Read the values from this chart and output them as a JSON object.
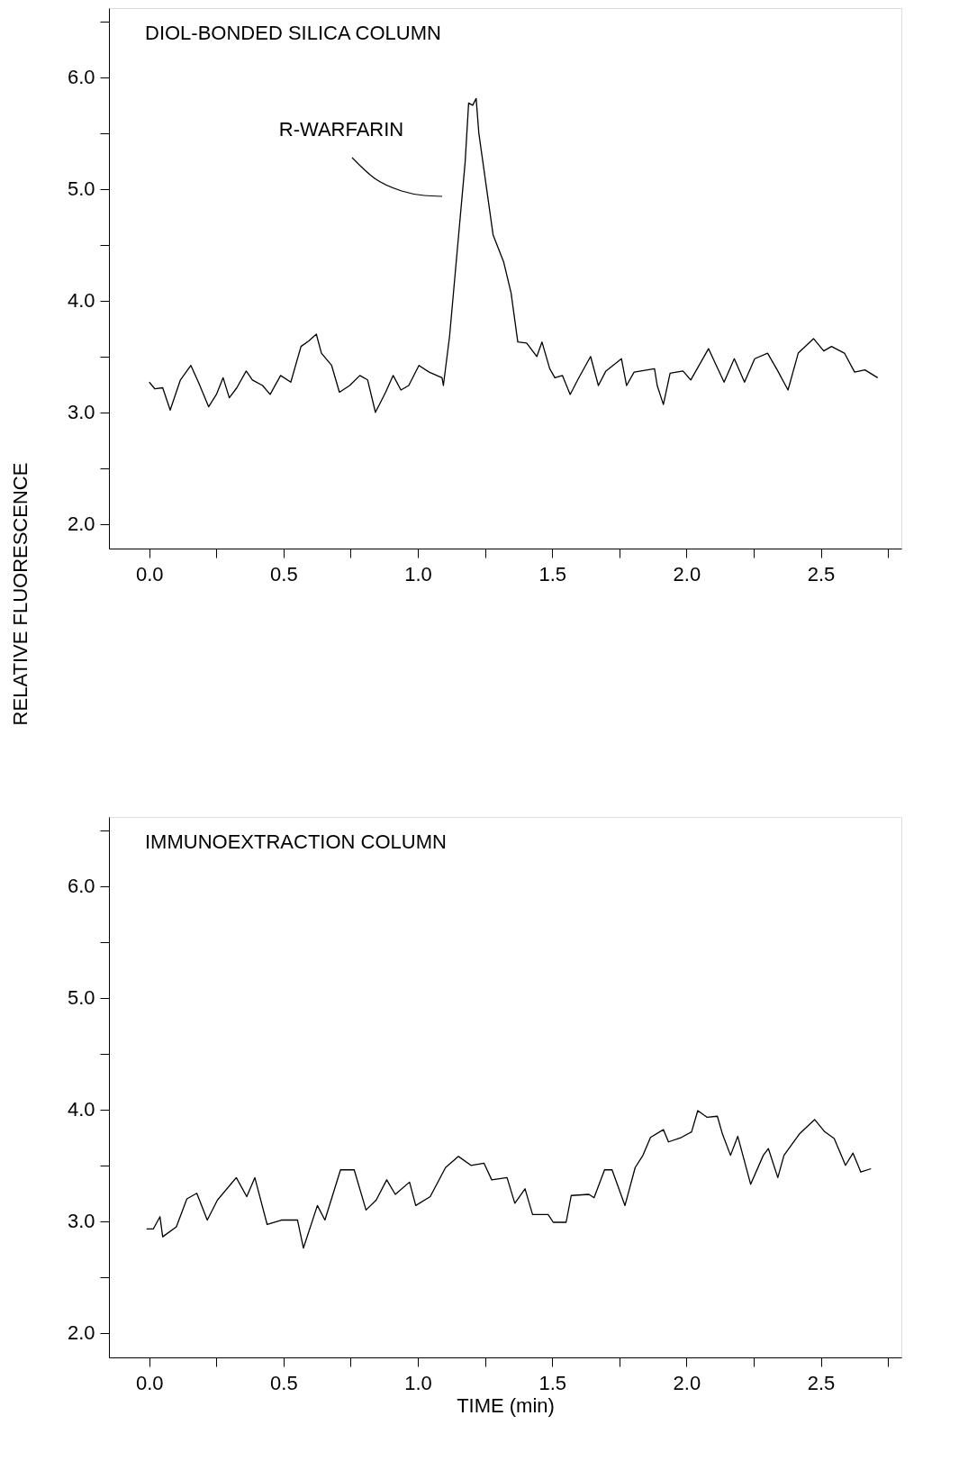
{
  "chart_data": [
    {
      "type": "line",
      "title": "DIOL-BONDED SILICA COLUMN",
      "ylabel": "RELATIVE FLUORESCENCE",
      "annotations": [
        "R-WARFARIN"
      ],
      "xlim": [
        -0.15,
        2.8
      ],
      "ylim": [
        1.78,
        6.62
      ],
      "xticks": [
        {
          "value": 0,
          "label": "0.0"
        },
        {
          "value": 0.25,
          "label": null
        },
        0.5,
        {
          "value": 0.75,
          "label": null
        },
        {
          "value": 1,
          "label": "1.0"
        },
        {
          "value": 1.25,
          "label": null
        },
        1.5,
        {
          "value": 1.75,
          "label": null
        },
        {
          "value": 2,
          "label": "2.0"
        },
        {
          "value": 2.25,
          "label": null
        },
        2.5,
        {
          "value": 2.75,
          "label": null
        }
      ],
      "yticks": [
        {
          "value": 2.0,
          "label": "2.0"
        },
        {
          "value": 2.5,
          "label": null
        },
        {
          "value": 3.0,
          "label": "3.0"
        },
        {
          "value": 3.5,
          "label": null
        },
        {
          "value": 4.0,
          "label": "4.0"
        },
        {
          "value": 4.5,
          "label": null
        },
        {
          "value": 5.0,
          "label": "5.0"
        },
        {
          "value": 5.5,
          "label": null
        },
        {
          "value": 6.0,
          "label": "6.0"
        },
        {
          "value": 6.5,
          "label": null
        }
      ],
      "grid": false,
      "marker": "none",
      "line_style": "solid",
      "tick_labels": "xy",
      "series": [
        {
          "color": "#000000",
          "x": [
            0.0,
            0.021,
            0.05,
            0.078,
            0.116,
            0.155,
            0.183,
            0.221,
            0.25,
            0.275,
            0.298,
            0.326,
            0.361,
            0.384,
            0.422,
            0.45,
            0.489,
            0.527,
            0.565,
            0.594,
            0.622,
            0.641,
            0.679,
            0.708,
            0.746,
            0.784,
            0.813,
            0.842,
            0.88,
            0.908,
            0.937,
            0.966,
            1.004,
            1.042,
            1.09,
            1.095,
            1.118,
            1.147,
            1.176,
            1.189,
            1.204,
            1.217,
            1.227,
            1.252,
            1.28,
            1.319,
            1.347,
            1.372,
            1.405,
            1.443,
            1.462,
            1.491,
            1.51,
            1.538,
            1.567,
            1.595,
            1.643,
            1.672,
            1.7,
            1.758,
            1.777,
            1.805,
            1.881,
            1.891,
            1.914,
            1.939,
            1.987,
            2.016,
            2.082,
            2.111,
            2.14,
            2.178,
            2.216,
            2.254,
            2.302,
            2.34,
            2.378,
            2.416,
            2.473,
            2.511,
            2.54,
            2.588,
            2.626,
            2.664,
            2.712
          ],
          "values": [
            3.27,
            3.21,
            3.22,
            3.02,
            3.29,
            3.42,
            3.27,
            3.05,
            3.16,
            3.31,
            3.13,
            3.22,
            3.37,
            3.29,
            3.24,
            3.16,
            3.33,
            3.27,
            3.59,
            3.64,
            3.7,
            3.53,
            3.42,
            3.18,
            3.24,
            3.33,
            3.29,
            3.0,
            3.18,
            3.33,
            3.2,
            3.24,
            3.42,
            3.36,
            3.31,
            3.24,
            3.68,
            4.46,
            5.24,
            5.77,
            5.75,
            5.81,
            5.5,
            5.07,
            4.59,
            4.35,
            4.07,
            3.63,
            3.62,
            3.5,
            3.63,
            3.39,
            3.31,
            3.33,
            3.16,
            3.29,
            3.5,
            3.24,
            3.37,
            3.48,
            3.24,
            3.36,
            3.39,
            3.24,
            3.07,
            3.35,
            3.37,
            3.29,
            3.57,
            3.42,
            3.27,
            3.48,
            3.27,
            3.48,
            3.53,
            3.37,
            3.2,
            3.53,
            3.66,
            3.55,
            3.59,
            3.53,
            3.36,
            3.38,
            3.31
          ]
        }
      ]
    },
    {
      "type": "line",
      "title": "IMMUNOEXTRACTION COLUMN",
      "xlabel": "TIME (min)",
      "xlim": [
        -0.15,
        2.8
      ],
      "ylim": [
        1.78,
        6.62
      ],
      "xticks": [
        {
          "value": 0,
          "label": "0.0"
        },
        {
          "value": 0.25,
          "label": null
        },
        0.5,
        {
          "value": 0.75,
          "label": null
        },
        {
          "value": 1,
          "label": "1.0"
        },
        {
          "value": 1.25,
          "label": null
        },
        1.5,
        {
          "value": 1.75,
          "label": null
        },
        {
          "value": 2,
          "label": "2.0"
        },
        {
          "value": 2.25,
          "label": null
        },
        2.5,
        {
          "value": 2.75,
          "label": null
        }
      ],
      "yticks": [
        {
          "value": 2.0,
          "label": "2.0"
        },
        {
          "value": 2.5,
          "label": null
        },
        {
          "value": 3.0,
          "label": "3.0"
        },
        {
          "value": 3.5,
          "label": null
        },
        {
          "value": 4.0,
          "label": "4.0"
        },
        {
          "value": 4.5,
          "label": null
        },
        {
          "value": 5.0,
          "label": "5.0"
        },
        {
          "value": 5.5,
          "label": null
        },
        {
          "value": 6.0,
          "label": "6.0"
        },
        {
          "value": 6.5,
          "label": null
        }
      ],
      "grid": false,
      "marker": "none",
      "line_style": "solid",
      "tick_labels": "xy",
      "series": [
        {
          "color": "#000000",
          "x": [
            -0.01,
            0.015,
            0.04,
            0.05,
            0.101,
            0.14,
            0.177,
            0.216,
            0.254,
            0.324,
            0.363,
            0.393,
            0.439,
            0.492,
            0.552,
            0.574,
            0.626,
            0.654,
            0.712,
            0.763,
            0.807,
            0.845,
            0.884,
            0.916,
            0.969,
            0.992,
            1.046,
            1.103,
            1.151,
            1.198,
            1.246,
            1.275,
            1.332,
            1.361,
            1.399,
            1.427,
            1.485,
            1.504,
            1.552,
            1.571,
            1.637,
            1.656,
            1.695,
            1.723,
            1.771,
            1.809,
            1.838,
            1.866,
            1.914,
            1.933,
            1.981,
            2.019,
            2.042,
            2.077,
            2.115,
            2.134,
            2.164,
            2.191,
            2.239,
            2.286,
            2.305,
            2.34,
            2.363,
            2.42,
            2.477,
            2.515,
            2.55,
            2.592,
            2.62,
            2.649,
            2.687
          ],
          "values": [
            2.93,
            2.93,
            3.04,
            2.86,
            2.95,
            3.2,
            3.25,
            3.01,
            3.19,
            3.39,
            3.22,
            3.39,
            2.97,
            3.01,
            3.01,
            2.76,
            3.14,
            3.01,
            3.46,
            3.46,
            3.1,
            3.19,
            3.37,
            3.24,
            3.35,
            3.14,
            3.22,
            3.48,
            3.58,
            3.5,
            3.52,
            3.37,
            3.39,
            3.16,
            3.29,
            3.06,
            3.06,
            2.99,
            2.99,
            3.23,
            3.24,
            3.21,
            3.46,
            3.46,
            3.14,
            3.48,
            3.59,
            3.75,
            3.82,
            3.71,
            3.75,
            3.8,
            3.99,
            3.93,
            3.94,
            3.78,
            3.59,
            3.76,
            3.33,
            3.59,
            3.65,
            3.39,
            3.59,
            3.78,
            3.91,
            3.8,
            3.74,
            3.5,
            3.61,
            3.44,
            3.47
          ]
        }
      ]
    }
  ]
}
